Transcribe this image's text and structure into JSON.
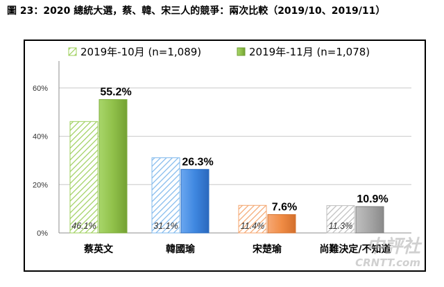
{
  "title": "圖 23：2020 總統大選，蔡、韓、宋三人的競爭：兩次比較（2019/10、2019/11）",
  "chart_data": {
    "type": "bar",
    "categories": [
      "蔡英文",
      "韓國瑜",
      "宋楚瑜",
      "尚難決定/不知道"
    ],
    "series": [
      {
        "name": "2019年-10月 (n=1,089)",
        "values": [
          46.1,
          31.1,
          11.4,
          11.3
        ],
        "value_labels": [
          "46.1%",
          "31.1%",
          "11.4%",
          "11.3%"
        ],
        "pattern": "hatched"
      },
      {
        "name": "2019年-11月 (n=1,078)",
        "values": [
          55.2,
          26.3,
          7.6,
          10.9
        ],
        "value_labels": [
          "55.2%",
          "26.3%",
          "7.6%",
          "10.9%"
        ],
        "pattern": "solid"
      }
    ],
    "bar_colors": [
      "#90c04a",
      "#3f87e0",
      "#f08c45",
      "#a6a6a6"
    ],
    "yticks": [
      "0%",
      "20%",
      "40%",
      "60%"
    ],
    "ylim": [
      0,
      70
    ],
    "grid": true,
    "legend": "top"
  },
  "watermark": {
    "cn": "中評社",
    "en": "CRNTT.com"
  }
}
